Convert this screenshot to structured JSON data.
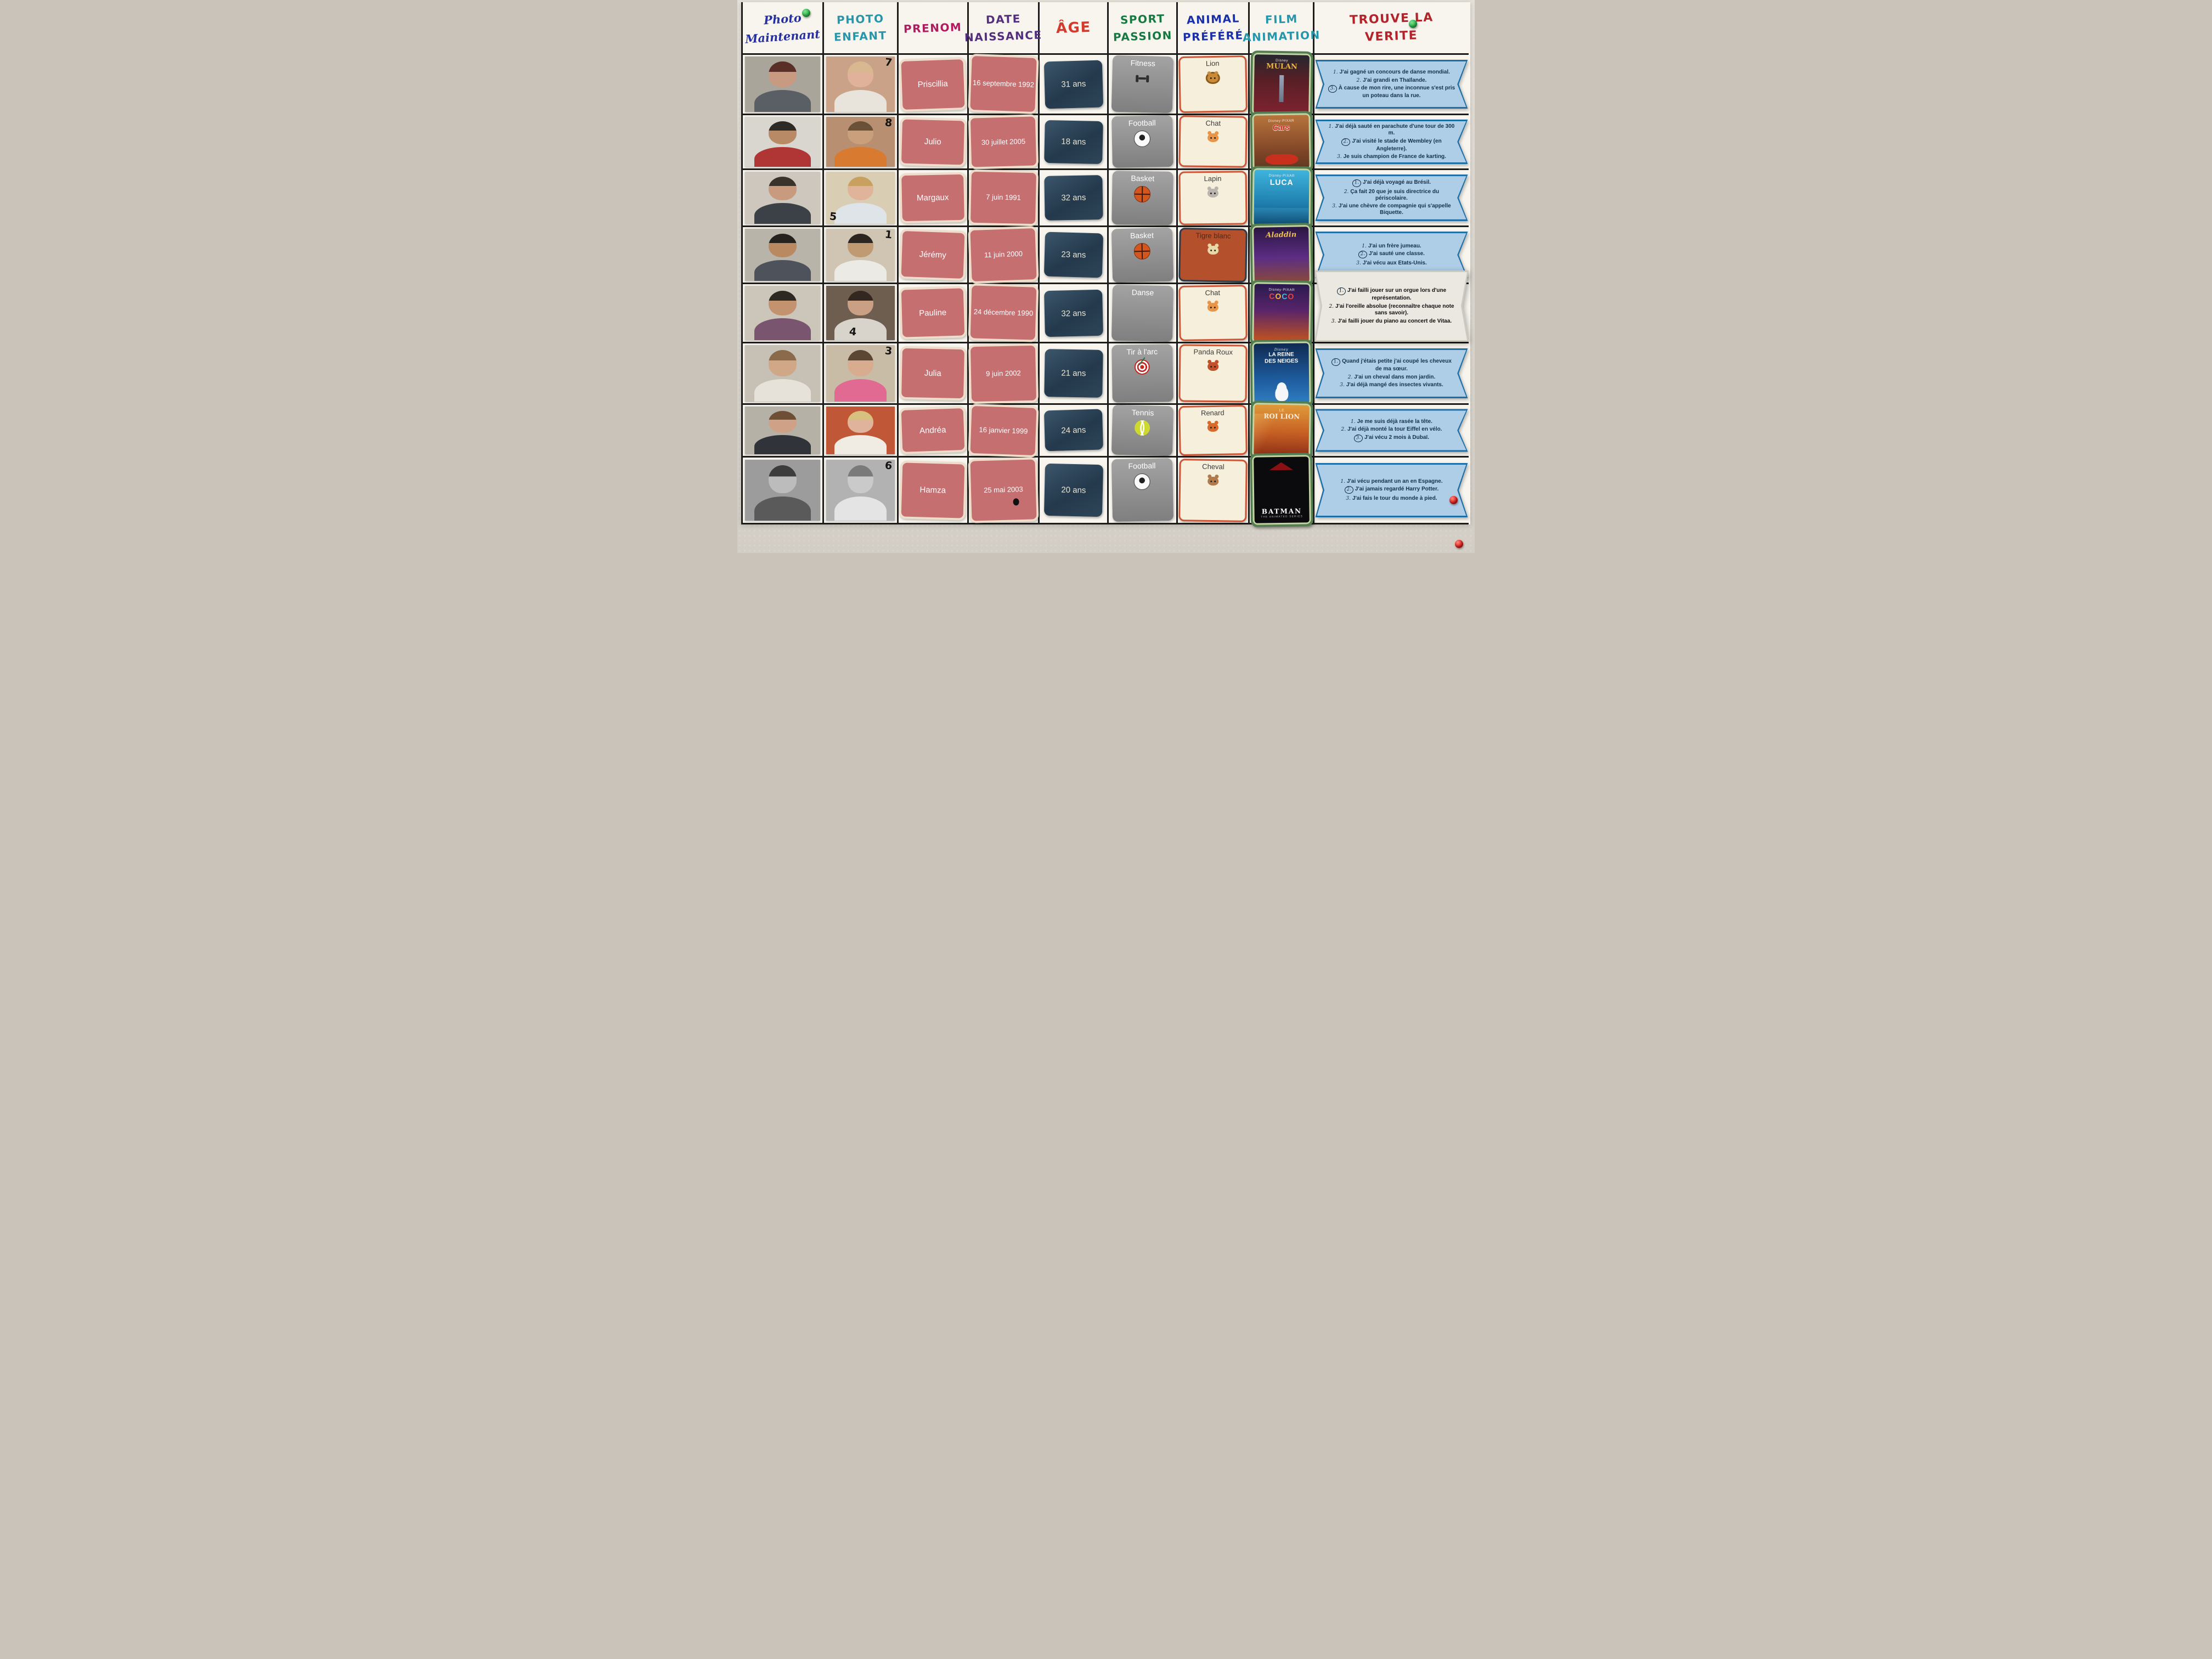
{
  "palette": {
    "wall": "#ddd8d0",
    "poster_paper": "#f8f5ee",
    "grid_line": "#1c1c1c",
    "rose_card": "#c66f71",
    "rose_card_border": "#eeddcb",
    "age_card": "#2c4356",
    "sport_card": "#8f8f8f",
    "animal_card_bg": "#f6efdc",
    "animal_card_border": "#cd5636",
    "tigre_card_bg": "#b5502d",
    "tigre_card_border": "#2c3a4a",
    "film_frame": "#557d52",
    "film_mat": "#c4d4a2",
    "ribbon_fill": "#aecde6",
    "ribbon_border": "#1d6fa8",
    "paper_card": "#ebe8e1",
    "pin_green": "#2db84b",
    "pin_red": "#e21b1b"
  },
  "board": {
    "headers": [
      {
        "line1": "Photo",
        "line2": "Maintenant",
        "color": "#2730a0"
      },
      {
        "line1": "PHOTO",
        "line2": "ENFANT",
        "color": "#2596ab"
      },
      {
        "line1": "PRENOM",
        "line2": "",
        "color": "#b01a5e"
      },
      {
        "line1": "DATE",
        "line2": "NAISSANCE",
        "color": "#53307e"
      },
      {
        "line1": "ÂGE",
        "line2": "",
        "color": "#d33b2f"
      },
      {
        "line1": "SPORT",
        "line2": "PASSION",
        "color": "#157a42"
      },
      {
        "line1": "ANIMAL",
        "line2": "PRÉFÉRÉ",
        "color": "#1b30a8"
      },
      {
        "line1": "FILM",
        "line2": "ANIMATION",
        "color": "#2596ab"
      },
      {
        "line1": "TROUVE LA",
        "line2": "VERITE",
        "color": "#b3232a"
      }
    ],
    "rows": [
      {
        "name": "Priscillia",
        "birth_date": "16 septembre 1992",
        "age": "31 ans",
        "sport": {
          "label": "Fitness",
          "icon": "fitness"
        },
        "animal": {
          "label": "Lion",
          "icon": "lion",
          "variant": "cream"
        },
        "film": {
          "brand": "Disney",
          "title": "MULAN",
          "poster": "mulan"
        },
        "child_photo_number": "7",
        "child_number_pos": "tr",
        "adult_photo_desc": "woman in grey t-shirt",
        "child_photo_desc": "laughing blond toddler",
        "truth": {
          "variant": "blue",
          "statements": [
            {
              "num": "1",
              "text": "J'ai gagné un concours de danse mondial.",
              "circled": false
            },
            {
              "num": "2",
              "text": "J'ai grandi en Thaïlande.",
              "circled": false
            },
            {
              "num": "3",
              "text": "À cause de mon rire, une inconnue s'est pris un poteau dans la rue.",
              "circled": true
            }
          ]
        }
      },
      {
        "name": "Julio",
        "birth_date": "30 juillet 2005",
        "age": "18 ans",
        "sport": {
          "label": "Football",
          "icon": "football"
        },
        "animal": {
          "label": "Chat",
          "icon": "chat",
          "variant": "cream"
        },
        "film": {
          "brand": "Disney·PIXAR",
          "title": "Cars",
          "poster": "cars"
        },
        "child_photo_number": "8",
        "child_number_pos": "tr",
        "adult_photo_desc": "man with glasses, red shirt",
        "child_photo_desc": "toddler in orange outfit",
        "truth": {
          "variant": "blue",
          "statements": [
            {
              "num": "1",
              "text": "J'ai déjà sauté en parachute d'une tour de 300 m.",
              "circled": false
            },
            {
              "num": "2",
              "text": "J'ai visité le stade de Wembley (en Angleterre).",
              "circled": true
            },
            {
              "num": "3",
              "text": "Je suis champion de France de karting.",
              "circled": false
            }
          ]
        }
      },
      {
        "name": "Margaux",
        "birth_date": "7 juin 1991",
        "age": "32 ans",
        "sport": {
          "label": "Basket",
          "icon": "basket"
        },
        "animal": {
          "label": "Lapin",
          "icon": "lapin",
          "variant": "cream"
        },
        "film": {
          "brand": "Disney·PIXAR",
          "title": "LUCA",
          "poster": "luca"
        },
        "child_photo_number": "5",
        "child_number_pos": "bl",
        "adult_photo_desc": "smiling person with glasses, dark top",
        "child_photo_desc": "small girl with curly blond hair",
        "truth": {
          "variant": "blue",
          "statements": [
            {
              "num": "1",
              "text": "J'ai déjà voyagé au Brésil.",
              "circled": true
            },
            {
              "num": "2",
              "text": "Ça fait 20 que je suis directrice du périscolaire.",
              "circled": false
            },
            {
              "num": "3",
              "text": "J'ai une chèvre de compagnie qui s'appelle Biquette.",
              "circled": false
            }
          ]
        }
      },
      {
        "name": "Jérémy",
        "birth_date": "11 juin 2000",
        "age": "23 ans",
        "sport": {
          "label": "Basket",
          "icon": "basket"
        },
        "animal": {
          "label": "Tigre blanc",
          "icon": "tigre",
          "variant": "tigre"
        },
        "film": {
          "brand": "",
          "title": "Aladdin",
          "poster": "aladdin"
        },
        "child_photo_number": "1",
        "child_number_pos": "tr",
        "adult_photo_desc": "man with glasses, grey t-shirt",
        "child_photo_desc": "little boy in white shirt and beige pants",
        "truth": {
          "variant": "blue",
          "statements": [
            {
              "num": "1",
              "text": "J'ai un frère jumeau.",
              "circled": false
            },
            {
              "num": "2",
              "text": "J'ai sauté une classe.",
              "circled": true
            },
            {
              "num": "3",
              "text": "J'ai vécu aux Etats-Unis.",
              "circled": false
            }
          ]
        }
      },
      {
        "name": "Pauline",
        "birth_date": "24 décembre 1990",
        "age": "32 ans",
        "sport": {
          "label": "Danse",
          "icon": "danse"
        },
        "animal": {
          "label": "Chat",
          "icon": "chat",
          "variant": "cream"
        },
        "film": {
          "brand": "Disney·PIXAR",
          "title": "COCO",
          "poster": "coco",
          "title_colors": [
            "#e8453a",
            "#f2b93b",
            "#49b9d6",
            "#e8453a"
          ]
        },
        "child_photo_number": "4",
        "child_number_pos": "bc",
        "adult_photo_desc": "smiling woman, purple t-shirt",
        "child_photo_desc": "girl drawing at a table, red chair",
        "truth": {
          "variant": "paper",
          "statements": [
            {
              "num": "1",
              "text": "J'ai failli jouer sur un orgue lors d'une représentation.",
              "circled": true
            },
            {
              "num": "2",
              "text": "J'ai l'oreille absolue (reconnaître chaque note sans savoir).",
              "circled": false
            },
            {
              "num": "3",
              "text": "J'ai failli jouer du piano au concert de Vitaa.",
              "circled": false
            }
          ]
        }
      },
      {
        "name": "Julia",
        "birth_date": "9 juin 2002",
        "age": "21 ans",
        "sport": {
          "label": "Tir à l'arc",
          "icon": "target"
        },
        "animal": {
          "label": "Panda Roux",
          "icon": "panda",
          "variant": "cream"
        },
        "film": {
          "brand": "Disney",
          "title": "LA REINE\nDES NEIGES",
          "poster": "neiges"
        },
        "child_photo_number": "3",
        "child_number_pos": "tr",
        "adult_photo_desc": "woman with shoulder-length hair, striped top",
        "child_photo_desc": "girl in pink princess dress with crown",
        "truth": {
          "variant": "blue",
          "statements": [
            {
              "num": "1",
              "text": "Quand j'étais petite j'ai coupé les cheveux de ma sœur.",
              "circled": true
            },
            {
              "num": "2",
              "text": "J'ai un cheval dans mon jardin.",
              "circled": false
            },
            {
              "num": "3",
              "text": "J'ai déjà mangé des insectes vivants.",
              "circled": false
            }
          ]
        }
      },
      {
        "name": "Andréa",
        "birth_date": "16 janvier 1999",
        "age": "24 ans",
        "sport": {
          "label": "Tennis",
          "icon": "tennis"
        },
        "animal": {
          "label": "Renard",
          "icon": "renard",
          "variant": "cream"
        },
        "film": {
          "brand": "LE",
          "title": "ROI LION",
          "poster": "roilion"
        },
        "child_photo_number": "",
        "child_number_pos": "tr",
        "adult_photo_desc": "woman with glasses, dark jacket",
        "child_photo_desc": "small girl in flowery dress on a ride",
        "truth": {
          "variant": "blue",
          "statements": [
            {
              "num": "1",
              "text": "Je me suis déjà rasée la tête.",
              "circled": false
            },
            {
              "num": "2",
              "text": "J'ai déjà monté la tour Eiffel en vélo.",
              "circled": false
            },
            {
              "num": "3",
              "text": "J'ai vécu 2 mois à Dubaï.",
              "circled": true
            }
          ]
        }
      },
      {
        "name": "Hamza",
        "birth_date": "25 mai 2003",
        "age": "20 ans",
        "sport": {
          "label": "Football",
          "icon": "football"
        },
        "animal": {
          "label": "Cheval",
          "icon": "cheval",
          "variant": "cream"
        },
        "film": {
          "brand": "",
          "title": "BATMAN",
          "sub": "THE ANIMATED SERIES",
          "poster": "batman"
        },
        "child_photo_number": "6",
        "child_number_pos": "tr",
        "adult_photo_desc": "black and white photo, man in hoodie",
        "child_photo_desc": "black and white baby photo",
        "date_ink_blot": true,
        "truth": {
          "variant": "blue",
          "statements": [
            {
              "num": "1",
              "text": "J'ai vécu pendant un an en Espagne.",
              "circled": false
            },
            {
              "num": "2",
              "text": "J'ai jamais regardé Harry Potter.",
              "circled": true
            },
            {
              "num": "3",
              "text": "J'ai fais le tour du monde à pied.",
              "circled": false
            }
          ]
        }
      }
    ],
    "pins": [
      {
        "name": "pushpin-green",
        "color": "#2db84b"
      },
      {
        "name": "pushpin-green",
        "color": "#2db84b"
      },
      {
        "name": "pushpin-red",
        "color": "#e21b1b"
      },
      {
        "name": "pushpin-red",
        "color": "#e21b1b"
      }
    ]
  }
}
